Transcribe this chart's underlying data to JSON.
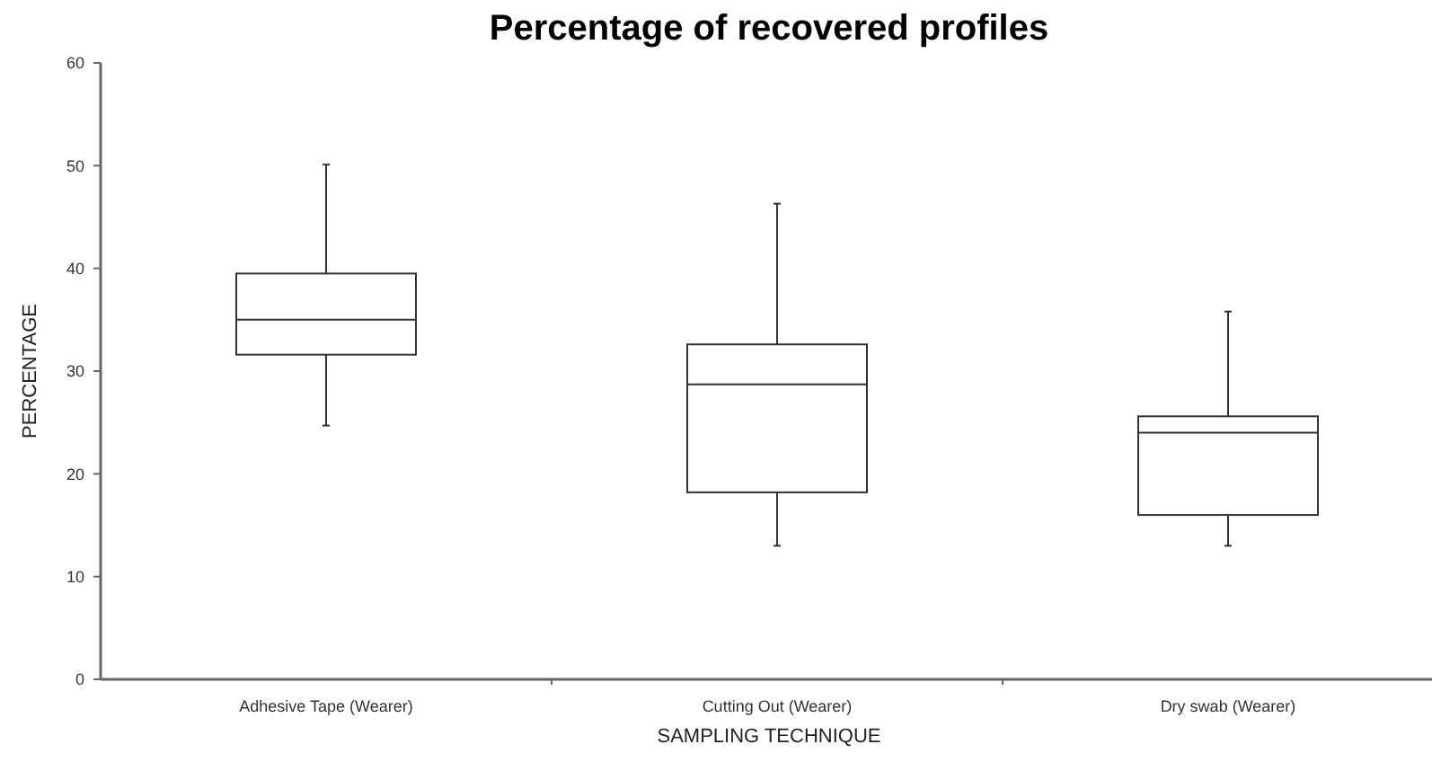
{
  "chart_data": {
    "type": "box",
    "title": "Percentage of recovered profiles",
    "xlabel": "SAMPLING TECHNIQUE",
    "ylabel": "PERCENTAGE",
    "categories": [
      "Adhesive Tape (Wearer)",
      "Cutting Out (Wearer)",
      "Dry swab (Wearer)"
    ],
    "boxes": [
      {
        "low": 24.7,
        "q1": 31.6,
        "median": 35.0,
        "q3": 39.5,
        "high": 50.1
      },
      {
        "low": 13.0,
        "q1": 18.2,
        "median": 28.7,
        "q3": 32.6,
        "high": 46.3
      },
      {
        "low": 13.0,
        "q1": 16.0,
        "median": 24.0,
        "q3": 25.6,
        "high": 35.8
      }
    ],
    "ylim": [
      0,
      60
    ],
    "yticks": [
      0,
      10,
      20,
      30,
      40,
      50,
      60
    ],
    "grid": false
  }
}
